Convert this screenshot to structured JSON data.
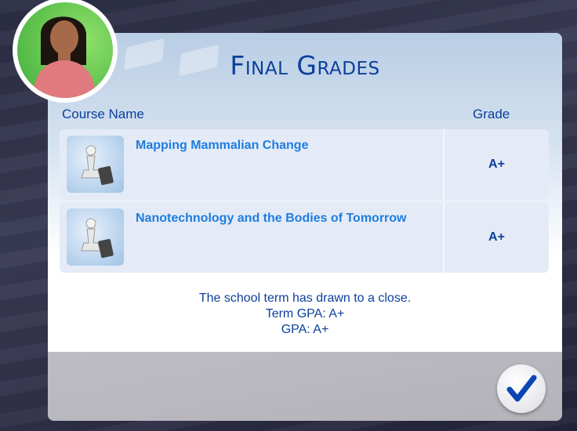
{
  "dialog": {
    "title": "Final Grades",
    "headers": {
      "course": "Course Name",
      "grade": "Grade"
    },
    "courses": [
      {
        "name": "Mapping Mammalian Change",
        "grade": "A+",
        "icon": "chess-pawn-book-icon"
      },
      {
        "name": "Nanotechnology and the Bodies of Tomorrow",
        "grade": "A+",
        "icon": "chess-pawn-book-icon"
      }
    ],
    "message": {
      "line1": "The school term has drawn to a close.",
      "line2": "Term GPA: A+",
      "line3": "GPA: A+"
    },
    "confirm_icon": "checkmark-icon"
  },
  "colors": {
    "title": "#0c3f9c",
    "course_name": "#1e7de0",
    "avatar_bg": "#3fae3a"
  }
}
